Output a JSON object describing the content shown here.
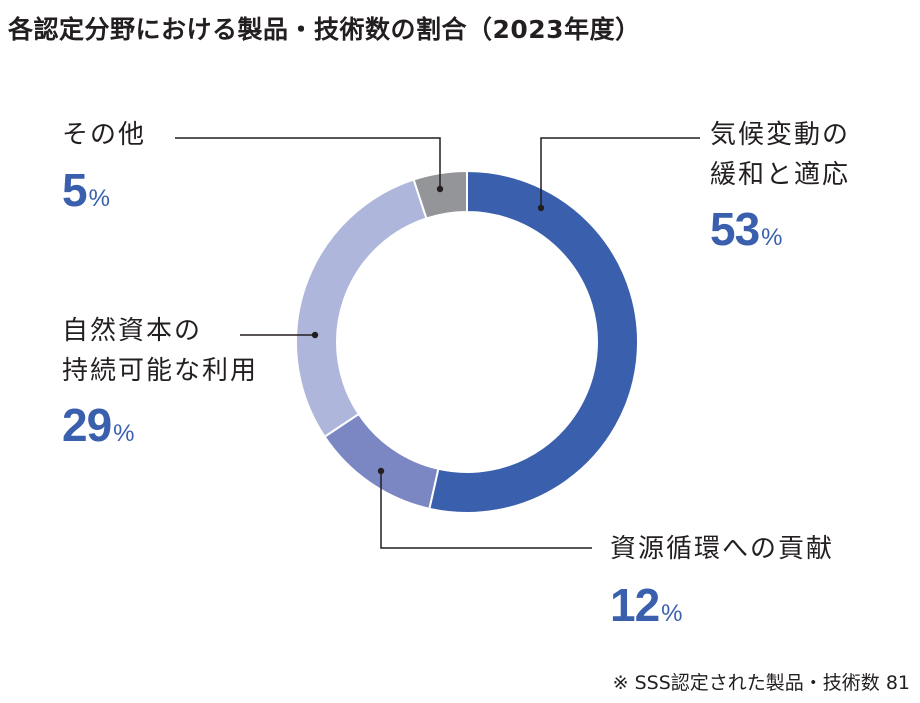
{
  "title": "各認定分野における製品・技術数の割合（2023年度）",
  "footnote": "※ SSS認定された製品・技術数  81",
  "colors": {
    "climate": "#3a5fad",
    "resource": "#7b87c3",
    "nature": "#aeb7db",
    "other": "#939598",
    "leader": "#231f20",
    "percent_text": "#3a5fad"
  },
  "labels": {
    "other": {
      "line1": "その他",
      "value": "5",
      "unit": "%"
    },
    "climate": {
      "line1": "気候変動の",
      "line2": "緩和と適応",
      "value": "53",
      "unit": "%"
    },
    "nature": {
      "line1": "自然資本の",
      "line2": "持続可能な利用",
      "value": "29",
      "unit": "%"
    },
    "resource": {
      "line1": "資源循環への貢献",
      "value": "12",
      "unit": "%"
    }
  },
  "chart_data": {
    "type": "pie",
    "subtype": "donut",
    "title": "各認定分野における製品・技術数の割合（2023年度）",
    "categories": [
      "気候変動の緩和と適応",
      "資源循環への貢献",
      "自然資本の持続可能な利用",
      "その他"
    ],
    "values": [
      53,
      12,
      29,
      5
    ],
    "unit": "%",
    "start_angle": "12 o'clock, clockwise",
    "colors": [
      "#3a5fad",
      "#7b87c3",
      "#aeb7db",
      "#939598"
    ],
    "legend": "none (leader-line labels)",
    "annotation": "※ SSS認定された製品・技術数  81",
    "total_count": 81
  }
}
